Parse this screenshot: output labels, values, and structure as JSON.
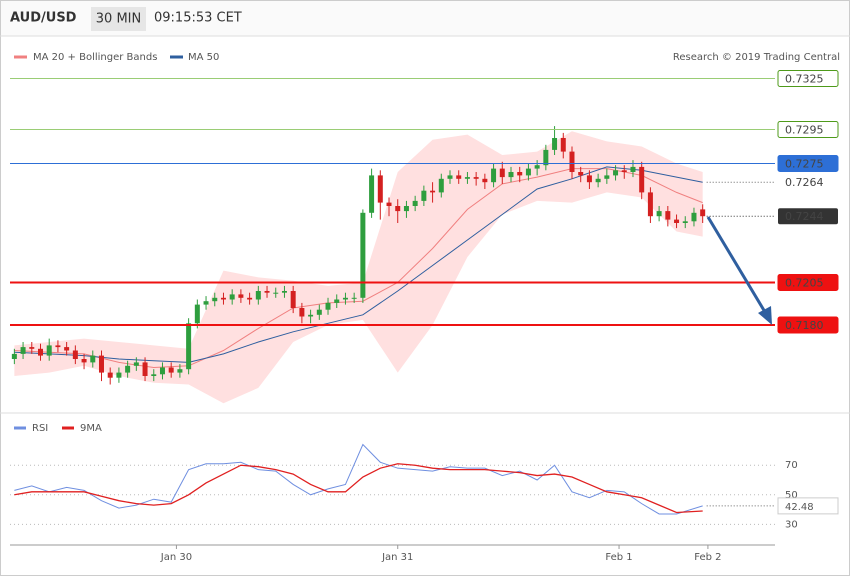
{
  "header": {
    "symbol": "AUD/USD",
    "interval": "30 MIN",
    "time": "09:15:53 CET"
  },
  "credit": "Research © 2019 Trading Central",
  "chart_data": [
    {
      "type": "candlestick",
      "open": [
        0.716,
        0.7163,
        0.7167,
        0.7166,
        0.7162,
        0.7168,
        0.7167,
        0.7165,
        0.716,
        0.7158,
        0.7162,
        0.7152,
        0.7149,
        0.7152,
        0.7156,
        0.7158,
        0.715,
        0.7151,
        0.7155,
        0.7152,
        0.7154,
        0.7181,
        0.7192,
        0.7194,
        0.7196,
        0.7195,
        0.7198,
        0.7196,
        0.7195,
        0.72,
        0.7199,
        0.7199,
        0.72,
        0.719,
        0.7185,
        0.7186,
        0.7189,
        0.7193,
        0.7195,
        0.7196,
        0.7196,
        0.7246,
        0.7268,
        0.7252,
        0.725,
        0.7247,
        0.725,
        0.7253,
        0.7259,
        0.7258,
        0.7266,
        0.7268,
        0.7266,
        0.7267,
        0.7266,
        0.7264,
        0.7272,
        0.7267,
        0.727,
        0.7268,
        0.7272,
        0.7274,
        0.7283,
        0.729,
        0.7282,
        0.727,
        0.7268,
        0.7264,
        0.7266,
        0.7268,
        0.7271,
        0.727,
        0.7273,
        0.7258,
        0.7244,
        0.7247,
        0.7242,
        0.724,
        0.7241,
        0.7248
      ],
      "high": [
        0.7166,
        0.717,
        0.717,
        0.7169,
        0.7172,
        0.7171,
        0.717,
        0.7168,
        0.7163,
        0.7165,
        0.7165,
        0.7155,
        0.7155,
        0.7159,
        0.7161,
        0.7161,
        0.7154,
        0.7158,
        0.7158,
        0.7157,
        0.7184,
        0.7195,
        0.7197,
        0.7199,
        0.7199,
        0.7201,
        0.7201,
        0.7199,
        0.7203,
        0.7203,
        0.7202,
        0.7203,
        0.7203,
        0.7193,
        0.7189,
        0.7192,
        0.7196,
        0.7198,
        0.7199,
        0.7199,
        0.7248,
        0.7272,
        0.7271,
        0.7255,
        0.7254,
        0.7253,
        0.7256,
        0.7262,
        0.7264,
        0.7269,
        0.7271,
        0.7271,
        0.727,
        0.727,
        0.7269,
        0.7275,
        0.7276,
        0.7273,
        0.7273,
        0.7275,
        0.7277,
        0.7286,
        0.7297,
        0.7293,
        0.7285,
        0.7273,
        0.7271,
        0.7269,
        0.7272,
        0.7274,
        0.7274,
        0.7277,
        0.7276,
        0.7261,
        0.725,
        0.725,
        0.7245,
        0.7244,
        0.7249,
        0.7251
      ],
      "low": [
        0.7157,
        0.716,
        0.7163,
        0.7159,
        0.7159,
        0.7164,
        0.7162,
        0.7157,
        0.7154,
        0.7155,
        0.7147,
        0.7145,
        0.7146,
        0.7149,
        0.7153,
        0.7147,
        0.7147,
        0.7148,
        0.7149,
        0.7149,
        0.7151,
        0.7178,
        0.7189,
        0.7191,
        0.7192,
        0.7192,
        0.7193,
        0.7192,
        0.7192,
        0.7196,
        0.7196,
        0.7196,
        0.7187,
        0.7181,
        0.7181,
        0.7183,
        0.7186,
        0.719,
        0.7192,
        0.7193,
        0.7193,
        0.7243,
        0.7242,
        0.7244,
        0.724,
        0.7243,
        0.7247,
        0.725,
        0.7252,
        0.7255,
        0.7263,
        0.7263,
        0.7263,
        0.7262,
        0.726,
        0.7261,
        0.7263,
        0.7264,
        0.7264,
        0.7265,
        0.7268,
        0.7271,
        0.728,
        0.7278,
        0.7266,
        0.7264,
        0.726,
        0.7261,
        0.7263,
        0.7265,
        0.7266,
        0.7267,
        0.7254,
        0.724,
        0.7241,
        0.7238,
        0.7237,
        0.7237,
        0.7238,
        0.724
      ],
      "close": [
        0.7163,
        0.7167,
        0.7166,
        0.7162,
        0.7168,
        0.7167,
        0.7165,
        0.716,
        0.7158,
        0.7162,
        0.7152,
        0.7149,
        0.7152,
        0.7156,
        0.7158,
        0.715,
        0.7151,
        0.7155,
        0.7152,
        0.7154,
        0.7181,
        0.7192,
        0.7194,
        0.7196,
        0.7195,
        0.7198,
        0.7196,
        0.7195,
        0.72,
        0.7199,
        0.7199,
        0.72,
        0.719,
        0.7185,
        0.7186,
        0.7189,
        0.7193,
        0.7195,
        0.7196,
        0.7196,
        0.7246,
        0.7268,
        0.7252,
        0.725,
        0.7247,
        0.725,
        0.7253,
        0.7259,
        0.7258,
        0.7266,
        0.7268,
        0.7266,
        0.7267,
        0.7266,
        0.7264,
        0.7272,
        0.7267,
        0.727,
        0.7268,
        0.7272,
        0.7274,
        0.7283,
        0.729,
        0.7282,
        0.727,
        0.7268,
        0.7264,
        0.7266,
        0.7268,
        0.7271,
        0.727,
        0.7273,
        0.7258,
        0.7244,
        0.7247,
        0.7242,
        0.724,
        0.7241,
        0.7246,
        0.7244
      ],
      "up_color": "#2e9e3e",
      "down_color": "#d42020",
      "series": [
        {
          "name": "MA 20 + Bollinger Bands",
          "color": "#f08080",
          "band_color": "#ffe0e0",
          "x": [
            0,
            4,
            8,
            12,
            16,
            20,
            24,
            28,
            32,
            36,
            40,
            44,
            48,
            52,
            56,
            60,
            64,
            68,
            72,
            76,
            79
          ],
          "values": [
            0.7165,
            0.7164,
            0.7163,
            0.7158,
            0.7155,
            0.7156,
            0.7165,
            0.7178,
            0.719,
            0.7193,
            0.7194,
            0.7205,
            0.7225,
            0.7248,
            0.7263,
            0.7267,
            0.7272,
            0.7272,
            0.7268,
            0.7258,
            0.7252
          ],
          "upper": [
            0.7168,
            0.717,
            0.7172,
            0.717,
            0.7168,
            0.7166,
            0.7212,
            0.7208,
            0.7206,
            0.7203,
            0.7205,
            0.727,
            0.7289,
            0.7292,
            0.728,
            0.7282,
            0.7294,
            0.7288,
            0.7285,
            0.7275,
            0.727
          ],
          "lower": [
            0.715,
            0.7152,
            0.7156,
            0.715,
            0.7146,
            0.7145,
            0.7134,
            0.7143,
            0.717,
            0.718,
            0.7183,
            0.7152,
            0.718,
            0.722,
            0.7245,
            0.7253,
            0.7252,
            0.7258,
            0.7255,
            0.7235,
            0.7232
          ]
        },
        {
          "name": "MA 50",
          "color": "#2f5f9f",
          "x": [
            0,
            4,
            8,
            12,
            16,
            20,
            24,
            28,
            32,
            36,
            40,
            44,
            48,
            52,
            56,
            60,
            64,
            68,
            72,
            76,
            79
          ],
          "values": [
            0.7164,
            0.7163,
            0.7162,
            0.716,
            0.7159,
            0.7158,
            0.7163,
            0.717,
            0.7176,
            0.7181,
            0.7186,
            0.72,
            0.7215,
            0.723,
            0.7245,
            0.726,
            0.7266,
            0.7273,
            0.7271,
            0.7267,
            0.7264
          ]
        }
      ],
      "levels": [
        {
          "value": 0.7325,
          "color": "#9acd75",
          "label_style": "outline",
          "label_color": "#4e9a1a"
        },
        {
          "value": 0.7295,
          "color": "#9acd75",
          "label_style": "outline",
          "label_color": "#4e9a1a"
        },
        {
          "value": 0.7275,
          "color": "#2d6fd6",
          "label_style": "filled",
          "label_color": "#2d6fd6"
        },
        {
          "value": 0.7205,
          "color": "#ee1111",
          "label_style": "filled",
          "label_color": "#ee1111"
        },
        {
          "value": {
            "value": 0.718,
            "label": "0.7180"
          },
          "color": "#ee1111",
          "label_style": "filled",
          "label_color": "#ee1111"
        }
      ],
      "xlim": [
        -0.5,
        87.3
      ],
      "ylim": [
        0.713,
        0.735
      ]
    },
    {
      "type": "line",
      "series": [
        {
          "name": "RSI",
          "color": "#6f8fe0",
          "x": [
            0,
            2,
            4,
            6,
            8,
            10,
            12,
            14,
            16,
            18,
            20,
            22,
            24,
            26,
            28,
            30,
            32,
            34,
            36,
            38,
            40,
            42,
            44,
            46,
            48,
            50,
            52,
            54,
            56,
            58,
            60,
            62,
            64,
            66,
            68,
            70,
            72,
            74,
            76,
            79
          ],
          "values": [
            53,
            56,
            52,
            55,
            53,
            46,
            41,
            43,
            47,
            45,
            67,
            71,
            71,
            72,
            67,
            66,
            57,
            50,
            54,
            57,
            84,
            72,
            68,
            67,
            66,
            69,
            68,
            68,
            63,
            66,
            60,
            70,
            52,
            48,
            53,
            52,
            44,
            37,
            37,
            42.48
          ]
        },
        {
          "name": "9MA",
          "color": "#e02020",
          "x": [
            0,
            2,
            4,
            6,
            8,
            10,
            12,
            14,
            16,
            18,
            20,
            22,
            24,
            26,
            28,
            30,
            32,
            34,
            36,
            38,
            40,
            42,
            44,
            46,
            48,
            50,
            52,
            54,
            56,
            58,
            60,
            62,
            64,
            66,
            68,
            70,
            72,
            74,
            76,
            79
          ],
          "values": [
            50,
            52,
            52,
            52,
            52,
            49,
            46,
            44,
            43,
            44,
            50,
            58,
            64,
            70,
            69,
            67,
            64,
            57,
            52,
            52,
            62,
            68,
            71,
            70,
            68,
            67,
            67,
            67,
            66,
            65,
            63,
            64,
            62,
            57,
            52,
            50,
            48,
            43,
            38,
            39
          ]
        }
      ],
      "ylim": [
        16,
        104
      ],
      "yticks": [
        70,
        50,
        30
      ],
      "xlim": [
        -0.5,
        87.3
      ],
      "xticks": [
        {
          "value": 18.6,
          "label": "Jan 30"
        },
        {
          "value": 44,
          "label": "Jan 31"
        },
        {
          "value": 69.4,
          "label": "Feb 1"
        },
        {
          "value": 79.6,
          "label": "Feb 2"
        }
      ]
    }
  ]
}
